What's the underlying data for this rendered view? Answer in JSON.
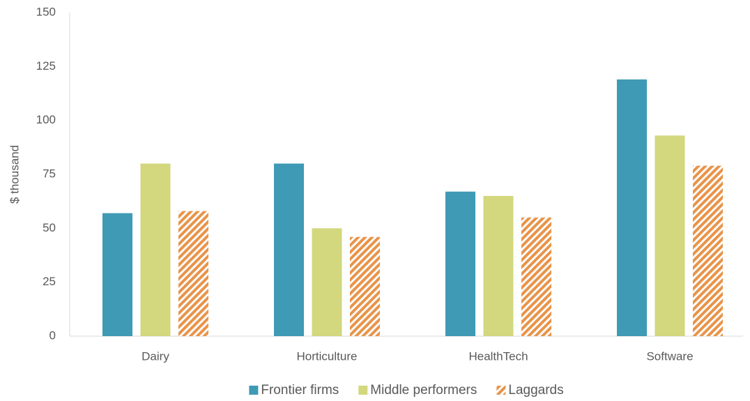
{
  "chart_data": {
    "type": "bar",
    "y_label": "$ thousand",
    "categories": [
      "Dairy",
      "Horticulture",
      "HealthTech",
      "Software"
    ],
    "series": [
      {
        "name": "Frontier firms",
        "color": "#3f9ab5",
        "values": [
          57,
          80,
          67,
          119
        ]
      },
      {
        "name": "Middle performers",
        "color": "#d3d77e",
        "values": [
          80,
          50,
          65,
          93
        ]
      },
      {
        "name": "Laggards",
        "color": "#e8944a",
        "pattern": "hatch",
        "values": [
          58,
          46,
          55,
          79
        ]
      }
    ],
    "ylim": [
      0,
      150
    ],
    "yticks": [
      0,
      25,
      50,
      75,
      100,
      125,
      150
    ],
    "grid": false,
    "legend": "bottom"
  }
}
